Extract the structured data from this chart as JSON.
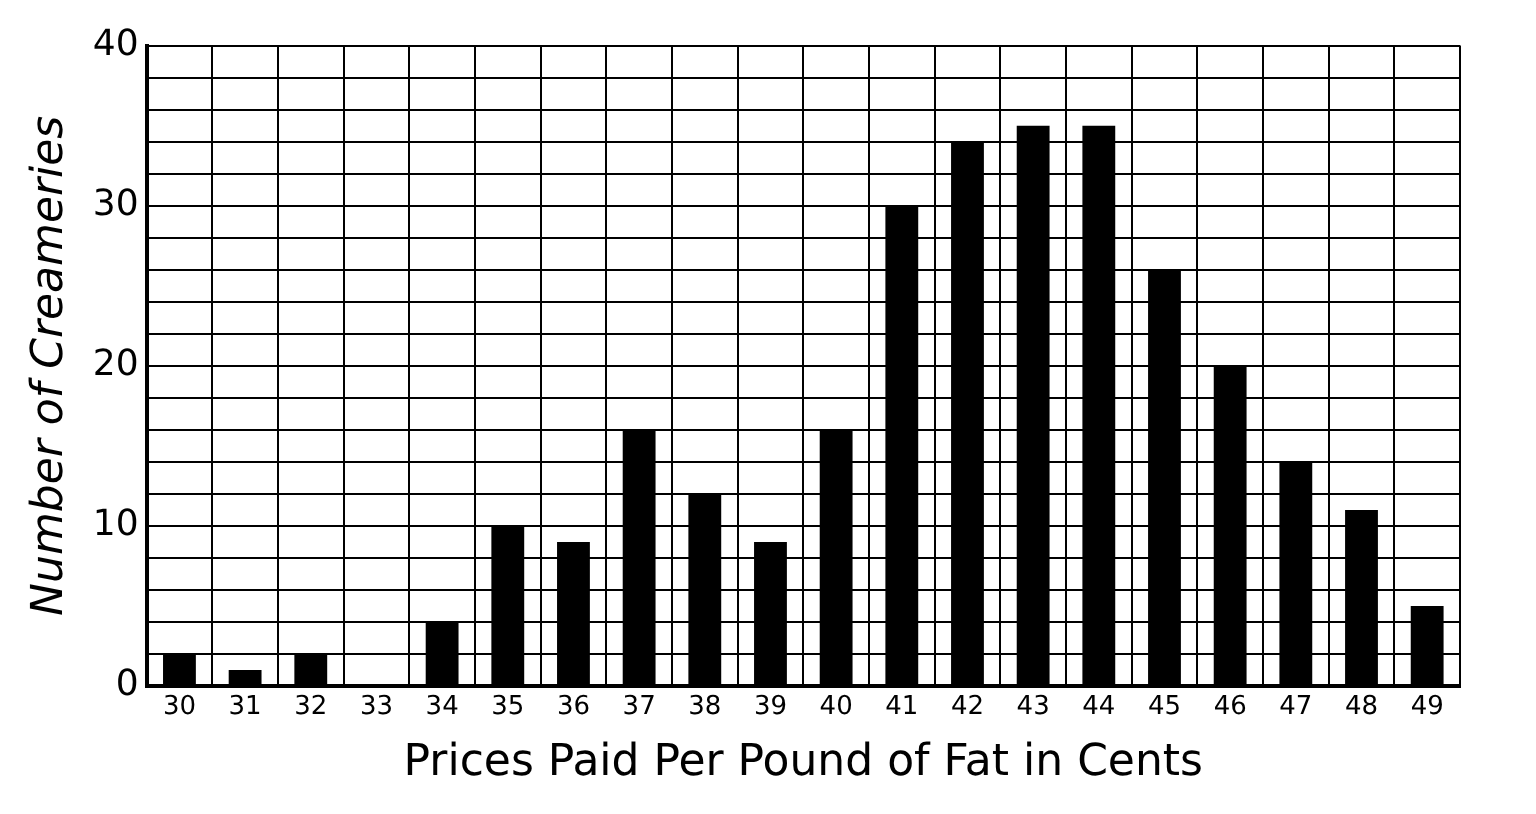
{
  "chart_data": {
    "type": "bar",
    "xlabel": "Prices Paid Per Pound of Fat in Cents",
    "ylabel": "Number of Creameries",
    "categories": [
      "30",
      "31",
      "32",
      "33",
      "34",
      "35",
      "36",
      "37",
      "38",
      "39",
      "40",
      "41",
      "42",
      "43",
      "44",
      "45",
      "46",
      "47",
      "48",
      "49"
    ],
    "values": [
      2,
      1,
      2,
      0,
      4,
      10,
      9,
      16,
      12,
      9,
      16,
      30,
      34,
      35,
      35,
      26,
      20,
      14,
      11,
      5
    ],
    "color": "#000000",
    "ylim": [
      0,
      40
    ],
    "yticks": [
      0,
      {
        "value": 2,
        "label": null
      },
      {
        "value": 4,
        "label": null
      },
      {
        "value": 6,
        "label": null
      },
      {
        "value": 8,
        "label": null
      },
      10,
      {
        "value": 12,
        "label": null
      },
      {
        "value": 14,
        "label": null
      },
      {
        "value": 16,
        "label": null
      },
      {
        "value": 18,
        "label": null
      },
      20,
      {
        "value": 22,
        "label": null
      },
      {
        "value": 24,
        "label": null
      },
      {
        "value": 26,
        "label": null
      },
      {
        "value": 28,
        "label": null
      },
      30,
      {
        "value": 32,
        "label": null
      },
      {
        "value": 34,
        "label": null
      },
      {
        "value": 36,
        "label": null
      },
      {
        "value": 38,
        "label": null
      },
      40
    ],
    "grid": true,
    "legend": false
  }
}
